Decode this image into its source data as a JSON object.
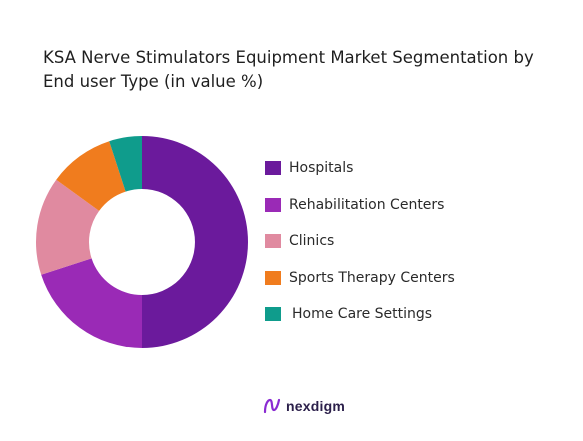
{
  "chart_data": {
    "type": "pie",
    "title": "KSA Nerve Stimulators Equipment Market Segmentation by End user Type (in value %)",
    "categories": [
      "Hospitals",
      "Rehabilitation Centers",
      "Clinics",
      "Sports Therapy Centers",
      "Home Care Settings"
    ],
    "values": [
      50,
      20,
      15,
      10,
      5
    ],
    "colors": [
      "#6b1a9c",
      "#9a2ab6",
      "#e08aa0",
      "#f07c1e",
      "#0f9c8c"
    ],
    "donut": true,
    "legend_position": "right"
  },
  "brand": {
    "name": "nexdigm",
    "icon": "nexdigm-logo-icon"
  }
}
